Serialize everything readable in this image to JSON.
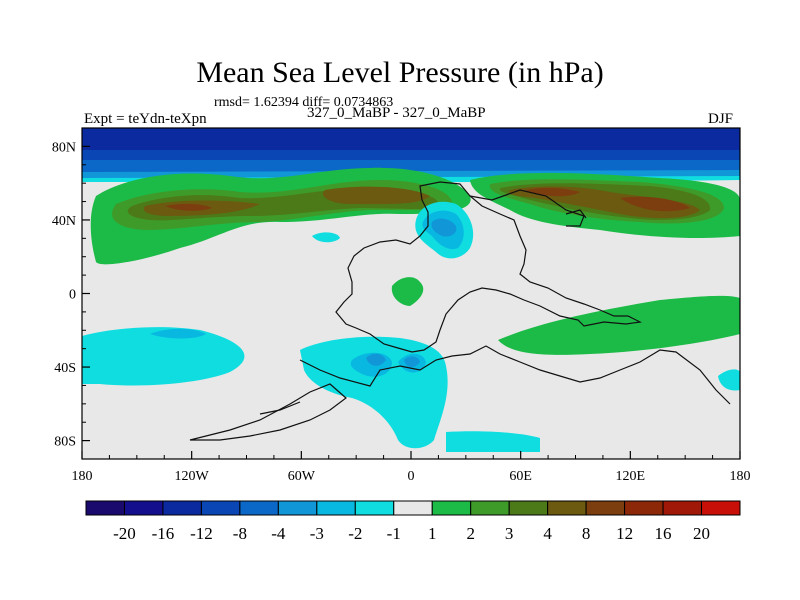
{
  "figure": {
    "title": "Mean Sea Level Pressure (in hPa)",
    "subtitle": "rmsd= 1.62394 diff= 0.0734863",
    "left_label": "Expt = teYdn-teXpn",
    "center_label": "327_0_MaBP - 327_0_MaBP",
    "right_label": "DJF"
  },
  "axes": {
    "x_ticks": [
      "180",
      "120W",
      "60W",
      "0",
      "60E",
      "120E",
      "180"
    ],
    "x_values": [
      -180,
      -120,
      -60,
      0,
      60,
      120,
      180
    ],
    "y_ticks": [
      "80N",
      "40N",
      "0",
      "40S",
      "80S"
    ],
    "y_values": [
      80,
      40,
      0,
      -40,
      -80
    ],
    "lon_range": [
      -180,
      180
    ],
    "lat_range": [
      -90,
      90
    ]
  },
  "colorbar": {
    "labels": [
      "-20",
      "-16",
      "-12",
      "-8",
      "-4",
      "-3",
      "-2",
      "-1",
      "1",
      "2",
      "3",
      "4",
      "8",
      "12",
      "16",
      "20"
    ],
    "colors": [
      "#1a0a6e",
      "#140f8c",
      "#0c2aa0",
      "#0a46b4",
      "#0b68c8",
      "#1196d8",
      "#08b8e0",
      "#10dde0",
      "#e8e8e8",
      "#1cbb48",
      "#3e9b2a",
      "#4c7a18",
      "#6b5a10",
      "#7c3e0e",
      "#8c2808",
      "#a01808",
      "#c81008"
    ]
  }
}
